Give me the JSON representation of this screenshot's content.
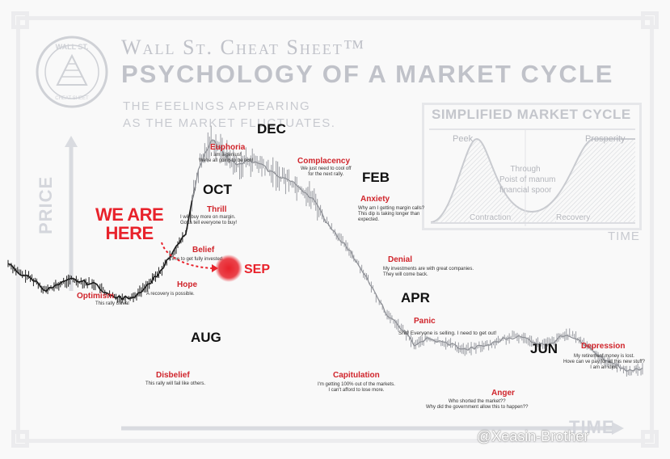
{
  "header": {
    "brand": "Wall St. Cheat Sheet™",
    "title": "PSYCHOLOGY OF A MARKET CYCLE",
    "subtitle": "THE FEELINGS APPEARING\nAS THE MARKET FLUCTUATES.",
    "logo_text_top": "WALL ST.",
    "logo_text_bottom": "CHEAT SHEET"
  },
  "axes": {
    "y_label": "PRICE",
    "x_label": "TIME"
  },
  "callout": {
    "text": "WE ARE\nHERE",
    "marker_label": "SEP",
    "color": "#e8222b"
  },
  "inset": {
    "title": "SIMPLIFIED MARKET CYCLE",
    "peek": "Peek",
    "prosperity": "Prosperity",
    "middle": "Through\nPoist of manum\nfinancial spoor",
    "contraction": "Contraction",
    "recovery": "Recovery",
    "time": "TIME"
  },
  "watermark": "@Xeasin-Brother",
  "chart_data": {
    "type": "line",
    "title": "Psychology of a Market Cycle",
    "xlabel": "TIME",
    "ylabel": "PRICE",
    "x": [
      0,
      2,
      4,
      6,
      8,
      10,
      12,
      14,
      16,
      18,
      20,
      22,
      24,
      26,
      28,
      30,
      32,
      34,
      36,
      38,
      40,
      42,
      44,
      46,
      48,
      50,
      52,
      54,
      56,
      58,
      60,
      62,
      64,
      66,
      68,
      70,
      72,
      74,
      76,
      78,
      80,
      82,
      84,
      86,
      88,
      90,
      92,
      94,
      96,
      98,
      100
    ],
    "values": [
      52,
      48,
      46,
      42,
      44,
      46,
      45,
      44,
      40,
      39,
      40,
      44,
      49,
      56,
      63,
      86,
      98,
      93,
      88,
      90,
      88,
      85,
      83,
      80,
      76,
      68,
      62,
      56,
      49,
      40,
      32,
      28,
      22,
      24,
      23,
      22,
      20,
      21,
      22,
      24,
      25,
      24,
      22,
      23,
      26,
      24,
      20,
      16,
      14,
      12,
      13
    ],
    "ylim": [
      0,
      100
    ],
    "xlim": [
      0,
      100
    ],
    "emotions": [
      {
        "label": "Optimism",
        "note": "This rally is real"
      },
      {
        "label": "Disbelief",
        "note": "This rally will fail like others."
      },
      {
        "label": "Hope",
        "note": "A recovery is possible."
      },
      {
        "label": "Belief",
        "note": "Time to get fully invested."
      },
      {
        "label": "Thrill",
        "note": "I will buy more on margin.\nGotta tell everyone to buy!"
      },
      {
        "label": "Euphoria",
        "note": "I am a genius!\nWe're all going to be rich!"
      },
      {
        "label": "Complacency",
        "note": "We just need to cool off\nfor the next rally."
      },
      {
        "label": "Anxiety",
        "note": "Why am I getting margin calls?\nThis dip is taking longer than\nexpected."
      },
      {
        "label": "Denial",
        "note": "My investments are with great companies.\nThey will come back."
      },
      {
        "label": "Panic",
        "note": "Shit! Everyone is selling. I need to get out!"
      },
      {
        "label": "Capitulation",
        "note": "I'm getting 100% out of the markets.\nI can't afford to lose more."
      },
      {
        "label": "Anger",
        "note": "Who shorted the market??\nWhy did the government allow this to happen??"
      },
      {
        "label": "Depression",
        "note": "My retirement money is lost.\nHove can ve pay for all this new stuff?\nI am an idiot."
      }
    ],
    "months": [
      "AUG",
      "SEP",
      "OCT",
      "DEC",
      "FEB",
      "APR",
      "JUN"
    ]
  }
}
